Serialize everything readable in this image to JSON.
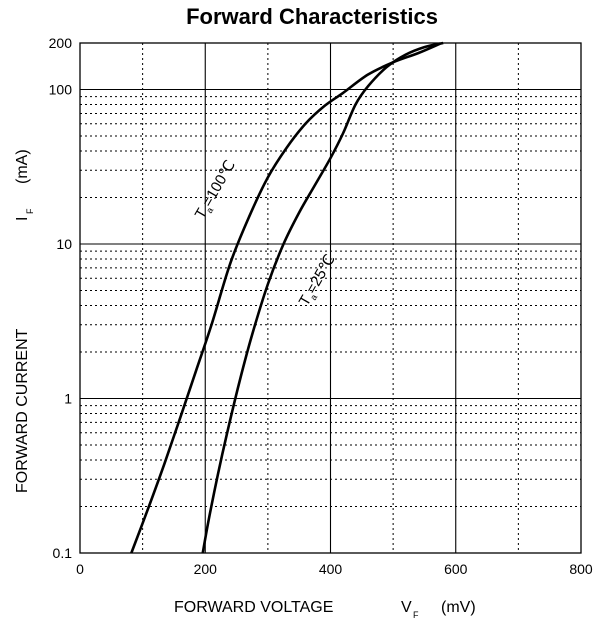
{
  "chart_data": {
    "type": "line",
    "title": "Forward Characteristics",
    "xlabel": {
      "main": "FORWARD VOLTAGE",
      "symbol": "V",
      "subscript": "F",
      "unit": "(mV)"
    },
    "ylabel": {
      "main": "FORWARD CURRENT",
      "symbol": "I",
      "subscript": "F",
      "unit": "(mA)"
    },
    "xlim": [
      0,
      800
    ],
    "ylim": [
      0.1,
      200
    ],
    "yscale": "log",
    "grid": true,
    "x_ticks": [
      "0",
      "200",
      "400",
      "600",
      "800"
    ],
    "y_ticks": [
      "0.1",
      "1",
      "10",
      "100",
      "200"
    ],
    "series": [
      {
        "name": "Ta=100℃",
        "label_main": "T",
        "label_sub": "a",
        "label_rest": "=100℃",
        "x": [
          82,
          110,
          135,
          160,
          185,
          210,
          240,
          270,
          300,
          330,
          360,
          390,
          420,
          460,
          500,
          540,
          575
        ],
        "y": [
          0.1,
          0.2,
          0.38,
          0.75,
          1.5,
          3,
          7.5,
          15,
          27,
          42,
          60,
          78,
          95,
          125,
          150,
          172,
          198
        ]
      },
      {
        "name": "Ta=25℃",
        "label_main": "T",
        "label_sub": "a",
        "label_rest": "=25℃",
        "x": [
          196,
          205,
          220,
          235,
          255,
          275,
          300,
          325,
          350,
          375,
          400,
          420,
          440,
          460,
          490,
          520,
          550,
          580
        ],
        "y": [
          0.1,
          0.16,
          0.32,
          0.6,
          1.3,
          2.6,
          5.5,
          10,
          16,
          24,
          36,
          52,
          80,
          105,
          140,
          168,
          188,
          200
        ]
      }
    ]
  }
}
